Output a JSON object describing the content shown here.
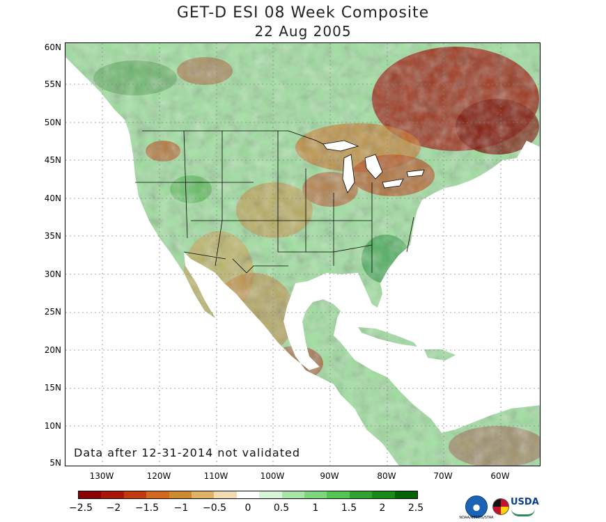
{
  "title": "GET-D ESI 08 Week Composite",
  "date": "22 Aug 2005",
  "note": "Data after 12-31-2014 not validated",
  "lat_labels": [
    "60N",
    "55N",
    "50N",
    "45N",
    "40N",
    "35N",
    "30N",
    "25N",
    "20N",
    "15N",
    "10N",
    "5N"
  ],
  "lon_labels": [
    "130W",
    "120W",
    "110W",
    "100W",
    "90W",
    "80W",
    "70W",
    "60W"
  ],
  "colorbar": {
    "labels": [
      "−2.5",
      "−2",
      "−1.5",
      "−1",
      "−0.5",
      "0",
      "0.5",
      "1",
      "1.5",
      "2",
      "2.5"
    ],
    "colors": [
      "#8b0000",
      "#a81606",
      "#c23a10",
      "#d2691e",
      "#cd8a2e",
      "#deb365",
      "#f0dcb0",
      "#ffffff",
      "#d6f5d6",
      "#a8e6a8",
      "#7dd87d",
      "#52c552",
      "#2fa52f",
      "#178a17",
      "#006400"
    ]
  },
  "logos": {
    "noaa": "NOAA/NESDIS/STAR",
    "usda": "USDA"
  }
}
